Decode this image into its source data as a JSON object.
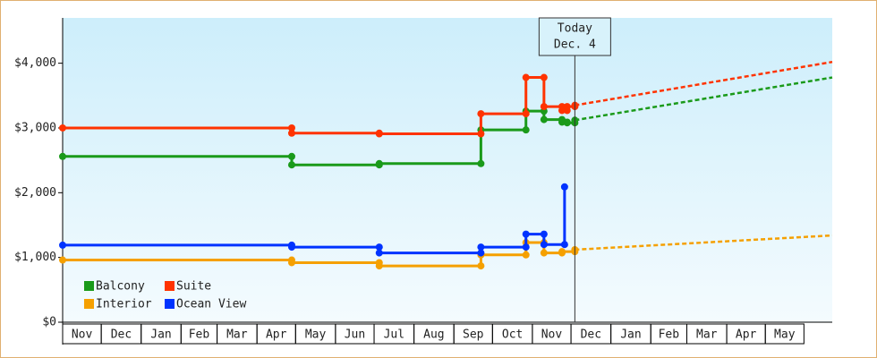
{
  "chart_data": {
    "type": "step-line",
    "annotation": {
      "x": 398,
      "lines": [
        "Today",
        "Dec. 4"
      ]
    },
    "xlim": [
      0,
      598
    ],
    "xticks": [
      {
        "value": 0,
        "label": "Nov"
      },
      {
        "value": 30,
        "label": "Dec"
      },
      {
        "value": 61,
        "label": "Jan"
      },
      {
        "value": 92,
        "label": "Feb"
      },
      {
        "value": 120,
        "label": "Mar"
      },
      {
        "value": 151,
        "label": "Apr"
      },
      {
        "value": 181,
        "label": "May"
      },
      {
        "value": 212,
        "label": "Jun"
      },
      {
        "value": 242,
        "label": "Jul"
      },
      {
        "value": 273,
        "label": "Aug"
      },
      {
        "value": 304,
        "label": "Sep"
      },
      {
        "value": 334,
        "label": "Oct"
      },
      {
        "value": 365,
        "label": "Nov"
      },
      {
        "value": 395,
        "label": "Dec"
      },
      {
        "value": 426,
        "label": "Jan"
      },
      {
        "value": 457,
        "label": "Feb"
      },
      {
        "value": 485,
        "label": "Mar"
      },
      {
        "value": 516,
        "label": "Apr"
      },
      {
        "value": 546,
        "label": "May"
      }
    ],
    "ylim": [
      0,
      4700
    ],
    "yticks": [
      {
        "value": 0,
        "label": "$0"
      },
      {
        "value": 1000,
        "label": "$1,000"
      },
      {
        "value": 2000,
        "label": "$2,000"
      },
      {
        "value": 3000,
        "label": "$3,000"
      },
      {
        "value": 4000,
        "label": "$4,000"
      }
    ],
    "legend": "lower left",
    "series": [
      {
        "name": "Balcony",
        "color": "#1a9a1a",
        "x": [
          0,
          178,
          246,
          325,
          360,
          374,
          388,
          392,
          398
        ],
        "values": [
          2560,
          2430,
          2450,
          2970,
          3260,
          3130,
          3090,
          3080,
          3120
        ],
        "forecast": {
          "x": [
            398,
            598
          ],
          "values": [
            3120,
            3780
          ]
        }
      },
      {
        "name": "Suite",
        "color": "#ff3300",
        "x": [
          0,
          178,
          246,
          325,
          360,
          374,
          388,
          392,
          398
        ],
        "values": [
          3000,
          2920,
          2910,
          3220,
          3780,
          3330,
          3270,
          3330,
          3350
        ],
        "forecast": {
          "x": [
            398,
            598
          ],
          "values": [
            3350,
            4020
          ]
        }
      },
      {
        "name": "Interior",
        "color": "#f5a000",
        "x": [
          0,
          178,
          246,
          325,
          360,
          374,
          388,
          398
        ],
        "values": [
          960,
          920,
          870,
          1040,
          1230,
          1070,
          1090,
          1120
        ],
        "forecast": {
          "x": [
            398,
            598
          ],
          "values": [
            1120,
            1340
          ]
        }
      },
      {
        "name": "Ocean View",
        "color": "#0033ff",
        "x": [
          0,
          178,
          246,
          325,
          360,
          374,
          390
        ],
        "values": [
          1190,
          1160,
          1070,
          1160,
          1360,
          1200,
          2090
        ]
      }
    ]
  }
}
